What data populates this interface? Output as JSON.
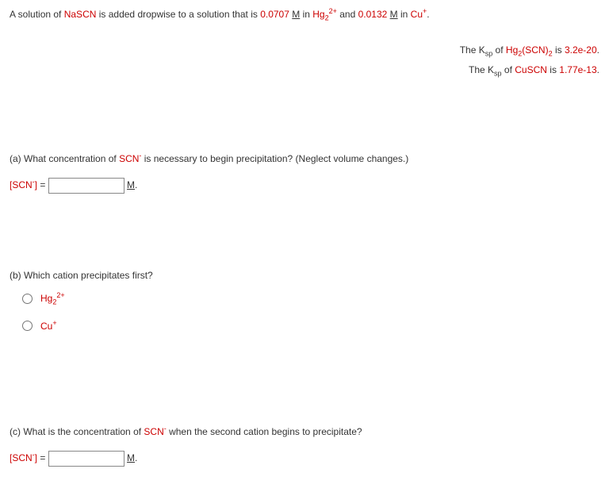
{
  "intro": {
    "t1": "A solution of ",
    "nascn": "NaSCN",
    "t2": " is added dropwise to a solution that is ",
    "conc1": "0.0707",
    "Min1": "M",
    "in1": " in ",
    "hg22plus": "Hg",
    "hg22plus_sub": "2",
    "hg22plus_sup": "2+",
    "and": " and ",
    "conc2": "0.0132",
    "Min2": "M",
    "in2": " in ",
    "cuplus": "Cu",
    "cuplus_sup": "+",
    "period": "."
  },
  "ksp": {
    "line1_a": "The K",
    "line1_sp": "sp",
    "line1_of": " of ",
    "line1_comp_a": "Hg",
    "line1_comp_sub": "2",
    "line1_comp_b": "(SCN)",
    "line1_comp_sub2": "2",
    "line1_is": " is ",
    "line1_val": "3.2e-20",
    "line1_p": ".",
    "line2_a": "The K",
    "line2_sp": "sp",
    "line2_of": " of ",
    "line2_comp": "CuSCN",
    "line2_is": " is ",
    "line2_val": "1.77e-13",
    "line2_p": "."
  },
  "partA": {
    "q": "(a) What concentration of ",
    "scn": "SCN",
    "scn_sup": "-",
    "q2": " is necessary to begin precipitation? (Neglect volume changes.)",
    "label_a": "[SCN",
    "label_sup": "-",
    "label_b": "]",
    "eq": " = ",
    "unit": "M",
    "unit_p": "."
  },
  "partB": {
    "q": "(b) Which cation precipitates first?",
    "opt1_a": "Hg",
    "opt1_sub": "2",
    "opt1_sup": "2+",
    "opt2_a": "Cu",
    "opt2_sup": "+"
  },
  "partC": {
    "q1": "(c) What is the concentration of ",
    "scn": "SCN",
    "scn_sup": "-",
    "q2": " when the second cation begins to precipitate?",
    "label_a": "[SCN",
    "label_sup": "-",
    "label_b": "]",
    "eq": " = ",
    "unit": "M",
    "unit_p": "."
  }
}
